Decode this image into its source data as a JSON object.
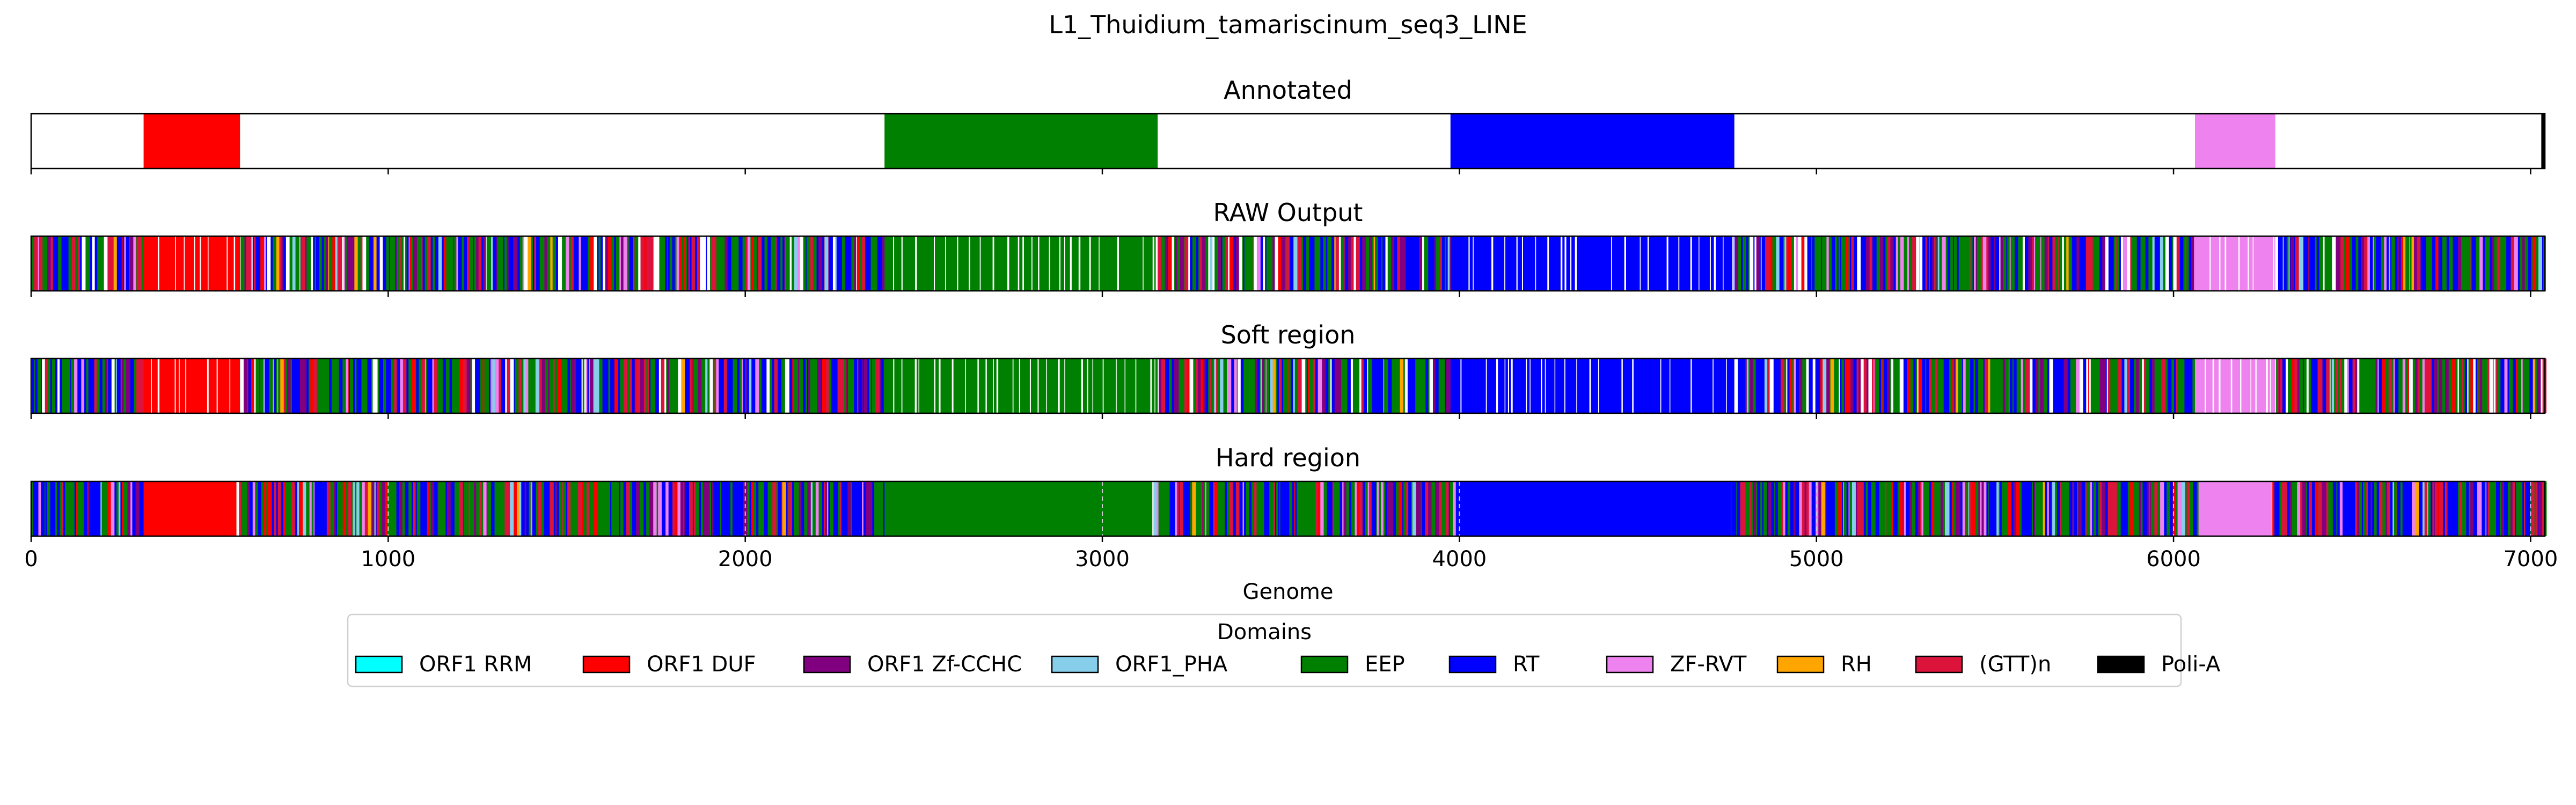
{
  "chart_data": {
    "type": "bar",
    "title": "L1_Thuidium_tamariscinum_seq3_LINE",
    "xlabel": "Genome",
    "xlim": [
      0,
      7040
    ],
    "xticks": [
      0,
      1000,
      2000,
      3000,
      4000,
      5000,
      6000,
      7000
    ],
    "tick_labels": [
      "0",
      "1000",
      "2000",
      "3000",
      "4000",
      "5000",
      "6000",
      "7000"
    ],
    "panels": [
      {
        "title": "Annotated",
        "segments": [
          {
            "domain": "ORF1 DUF",
            "start": 315,
            "end": 585
          },
          {
            "domain": "EEP",
            "start": 2390,
            "end": 3155
          },
          {
            "domain": "RT",
            "start": 3975,
            "end": 4770
          },
          {
            "domain": "ZF-RVT",
            "start": 6060,
            "end": 6285
          },
          {
            "domain": "Poli-A",
            "start": 7030,
            "end": 7040
          }
        ]
      },
      {
        "title": "RAW Output",
        "mode": "noisy",
        "blocks": [
          {
            "domain": "ORF1 DUF",
            "start": 315,
            "end": 585
          },
          {
            "domain": "EEP",
            "start": 2390,
            "end": 3155
          },
          {
            "domain": "RT",
            "start": 3975,
            "end": 4770
          },
          {
            "domain": "ZF-RVT",
            "start": 6060,
            "end": 6285
          }
        ],
        "gaps": true
      },
      {
        "title": "Soft region",
        "mode": "noisy",
        "blocks": [
          {
            "domain": "ORF1 DUF",
            "start": 315,
            "end": 585
          },
          {
            "domain": "EEP",
            "start": 2390,
            "end": 3155
          },
          {
            "domain": "RT",
            "start": 3975,
            "end": 4770
          },
          {
            "domain": "ZF-RVT",
            "start": 6060,
            "end": 6285
          }
        ],
        "gaps": true
      },
      {
        "title": "Hard region",
        "mode": "noisy",
        "blocks": [
          {
            "domain": "ORF1 DUF",
            "start": 315,
            "end": 575
          },
          {
            "domain": "EEP",
            "start": 2390,
            "end": 3140
          },
          {
            "domain": "RT",
            "start": 3990,
            "end": 4760
          },
          {
            "domain": "ZF-RVT",
            "start": 6070,
            "end": 6275
          }
        ],
        "gaps": false
      }
    ],
    "legend": {
      "title": "Domains",
      "position": "bottom-center",
      "entries": [
        {
          "label": "ORF1 RRM",
          "color": "#00ffff"
        },
        {
          "label": "ORF1 DUF",
          "color": "#ff0000"
        },
        {
          "label": "ORF1 Zf-CCHC",
          "color": "#800080"
        },
        {
          "label": "ORF1_PHA",
          "color": "#87ceeb"
        },
        {
          "label": "EEP",
          "color": "#008000"
        },
        {
          "label": "RT",
          "color": "#0000ff"
        },
        {
          "label": "ZF-RVT",
          "color": "#ee82ee"
        },
        {
          "label": "RH",
          "color": "#ffa500"
        },
        {
          "label": "(GTT)n",
          "color": "#dc143c"
        },
        {
          "label": "Poli-A",
          "color": "#000000"
        }
      ]
    },
    "noise_colors": [
      "#008000",
      "#0000ff",
      "#dc143c",
      "#800080",
      "#ee82ee",
      "#ff0000",
      "#87ceeb",
      "#ffa500"
    ],
    "grid": "dashed vertical lines on bottom panel"
  }
}
